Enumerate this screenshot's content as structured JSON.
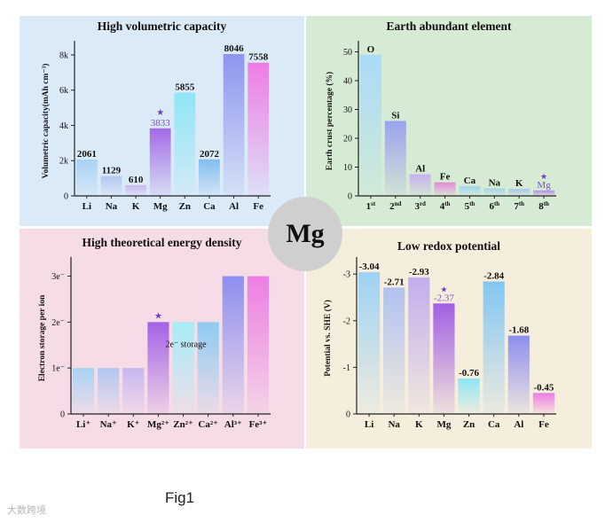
{
  "figure": {
    "caption": "Fig1",
    "watermark": "大数跨境",
    "center_label": "Mg"
  },
  "colors": {
    "star": "#6b3fbf",
    "mg_label": "#7b4fc8"
  },
  "chart_data": [
    {
      "id": "vol",
      "type": "bar",
      "title": "High volumetric capacity",
      "ylabel": "Volumetric capacity(mAh cm⁻³)",
      "categories": [
        "Li",
        "Na",
        "K",
        "Mg",
        "Zn",
        "Ca",
        "Al",
        "Fe"
      ],
      "values": [
        2061,
        1129,
        610,
        3833,
        5855,
        2072,
        8046,
        7558
      ],
      "value_labels": [
        "2061",
        "1129",
        "610",
        "3833",
        "5855",
        "2072",
        "8046",
        "7558"
      ],
      "ylim": [
        0,
        8500
      ],
      "yticks": [
        0,
        2000,
        4000,
        6000,
        8000
      ],
      "ytick_labels": [
        "0",
        "2k",
        "4k",
        "6k",
        "8k"
      ],
      "highlight": 3,
      "colors": [
        "#a8d2f4",
        "#b6c7f0",
        "#c9b8ef",
        "#a56ae6",
        "#8fe6f6",
        "#82bdf0",
        "#8f94ef",
        "#ef7ce5"
      ],
      "grid": false
    },
    {
      "id": "earth",
      "type": "bar",
      "title": "Earth abundant element",
      "ylabel": "Earth crust percentage (%)",
      "categories": [
        "1st",
        "2nd",
        "3rd",
        "4th",
        "5th",
        "6th",
        "7th",
        "8th"
      ],
      "values": [
        49,
        26,
        7.5,
        4.7,
        3.4,
        2.6,
        2.4,
        1.9
      ],
      "bar_labels": [
        "O",
        "Si",
        "Al",
        "Fe",
        "Ca",
        "Na",
        "K",
        "Mg"
      ],
      "ylim": [
        0,
        52
      ],
      "yticks": [
        0,
        10,
        20,
        30,
        40,
        50
      ],
      "ytick_labels": [
        "0",
        "10",
        "20",
        "30",
        "40",
        "50"
      ],
      "highlight": 7,
      "colors": [
        "#a9dbf8",
        "#9ba2ee",
        "#c7b1ef",
        "#e38ad9",
        "#a4d6f2",
        "#a7d4ee",
        "#a8c3ee",
        "#b68be8"
      ],
      "grid": false
    },
    {
      "id": "energy",
      "type": "bar",
      "title": "High theoretical energy density",
      "ylabel": "Electron storage per ion",
      "categories": [
        "Li⁺",
        "Na⁺",
        "K⁺",
        "Mg²⁺",
        "Zn²⁺",
        "Ca²⁺",
        "Al³⁺",
        "Fe³⁺"
      ],
      "values": [
        1,
        1,
        1,
        2,
        2,
        2,
        3,
        3
      ],
      "ylim": [
        0,
        3.3
      ],
      "yticks": [
        0,
        1,
        2,
        3
      ],
      "ytick_labels": [
        "0",
        "1e⁻",
        "2e⁻",
        "3e⁻"
      ],
      "annotation": "2e⁻ storage",
      "highlight": 3,
      "colors": [
        "#a9d3f4",
        "#b1c7f1",
        "#c6b7ef",
        "#a463e6",
        "#a6ecf6",
        "#8fcbf2",
        "#8d8ff0",
        "#ec7ee3"
      ],
      "grid": false
    },
    {
      "id": "redox",
      "type": "bar",
      "title": "Low redox potential",
      "ylabel": "Potential vs. SHE (V)",
      "categories": [
        "Li",
        "Na",
        "K",
        "Mg",
        "Zn",
        "Ca",
        "Al",
        "Fe"
      ],
      "values": [
        -3.04,
        -2.71,
        -2.93,
        -2.37,
        -0.76,
        -2.84,
        -1.68,
        -0.45
      ],
      "value_labels": [
        "-3.04",
        "-2.71",
        "-2.93",
        "-2.37",
        "-0.76",
        "-2.84",
        "-1.68",
        "-0.45"
      ],
      "ylim": [
        0,
        -3.25
      ],
      "yticks": [
        0,
        -1,
        -2,
        -3
      ],
      "ytick_labels": [
        "0",
        "-1",
        "-2",
        "-3"
      ],
      "highlight": 3,
      "colors": [
        "#9ed2f4",
        "#b1c2f0",
        "#c3aded",
        "#a25fe3",
        "#8fe5f5",
        "#83c6f2",
        "#8e8eef",
        "#ee7ce4"
      ],
      "grid": false
    }
  ]
}
